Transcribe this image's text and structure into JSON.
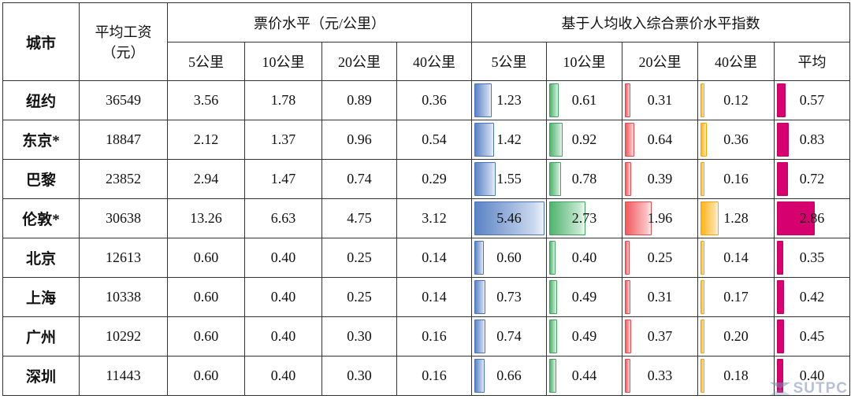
{
  "headers": {
    "city": "城市",
    "salary_line1": "平均工资",
    "salary_line2": "（元）",
    "fare_group": "票价水平（元/公里）",
    "index_group": "基于人均收入综合票价水平指数",
    "fare_cols": [
      "5公里",
      "10公里",
      "20公里",
      "40公里"
    ],
    "index_cols": [
      "5公里",
      "10公里",
      "20公里",
      "40公里",
      "平均"
    ]
  },
  "rows": [
    {
      "city": "纽约",
      "salary": "36549",
      "fares": [
        "3.56",
        "1.78",
        "0.89",
        "0.36"
      ],
      "index": [
        "1.23",
        "0.61",
        "0.31",
        "0.12",
        "0.57"
      ],
      "index_values": [
        1.23,
        0.61,
        0.31,
        0.12,
        0.57
      ]
    },
    {
      "city": "东京*",
      "salary": "18847",
      "fares": [
        "2.12",
        "1.37",
        "0.96",
        "0.54"
      ],
      "index": [
        "1.42",
        "0.92",
        "0.64",
        "0.36",
        "0.83"
      ],
      "index_values": [
        1.42,
        0.92,
        0.64,
        0.36,
        0.83
      ]
    },
    {
      "city": "巴黎",
      "salary": "23852",
      "fares": [
        "2.94",
        "1.47",
        "0.74",
        "0.29"
      ],
      "index": [
        "1.55",
        "0.78",
        "0.39",
        "0.16",
        "0.72"
      ],
      "index_values": [
        1.55,
        0.78,
        0.39,
        0.16,
        0.72
      ]
    },
    {
      "city": "伦敦*",
      "salary": "30638",
      "fares": [
        "13.26",
        "6.63",
        "4.75",
        "3.12"
      ],
      "index": [
        "5.46",
        "2.73",
        "1.96",
        "1.28",
        "2.86"
      ],
      "index_values": [
        5.46,
        2.73,
        1.96,
        1.28,
        2.86
      ]
    },
    {
      "city": "北京",
      "salary": "12613",
      "fares": [
        "0.60",
        "0.40",
        "0.25",
        "0.14"
      ],
      "index": [
        "0.60",
        "0.40",
        "0.25",
        "0.14",
        "0.35"
      ],
      "index_values": [
        0.6,
        0.4,
        0.25,
        0.14,
        0.35
      ]
    },
    {
      "city": "上海",
      "salary": "10338",
      "fares": [
        "0.60",
        "0.40",
        "0.25",
        "0.14"
      ],
      "index": [
        "0.73",
        "0.49",
        "0.31",
        "0.17",
        "0.42"
      ],
      "index_values": [
        0.73,
        0.49,
        0.31,
        0.17,
        0.42
      ]
    },
    {
      "city": "广州",
      "salary": "10292",
      "fares": [
        "0.60",
        "0.40",
        "0.30",
        "0.16"
      ],
      "index": [
        "0.74",
        "0.49",
        "0.37",
        "0.20",
        "0.45"
      ],
      "index_values": [
        0.74,
        0.49,
        0.37,
        0.2,
        0.45
      ]
    },
    {
      "city": "深圳",
      "salary": "11443",
      "fares": [
        "0.60",
        "0.40",
        "0.30",
        "0.16"
      ],
      "index": [
        "0.66",
        "0.44",
        "0.33",
        "0.18",
        "0.40"
      ],
      "index_values": [
        0.66,
        0.44,
        0.33,
        0.18,
        0.4
      ]
    }
  ],
  "data_bar_colors": [
    "#5b83c4",
    "#4fb46f",
    "#f05a5f",
    "#ffb31a",
    "#d6006f"
  ],
  "watermark": "SUTPC"
}
